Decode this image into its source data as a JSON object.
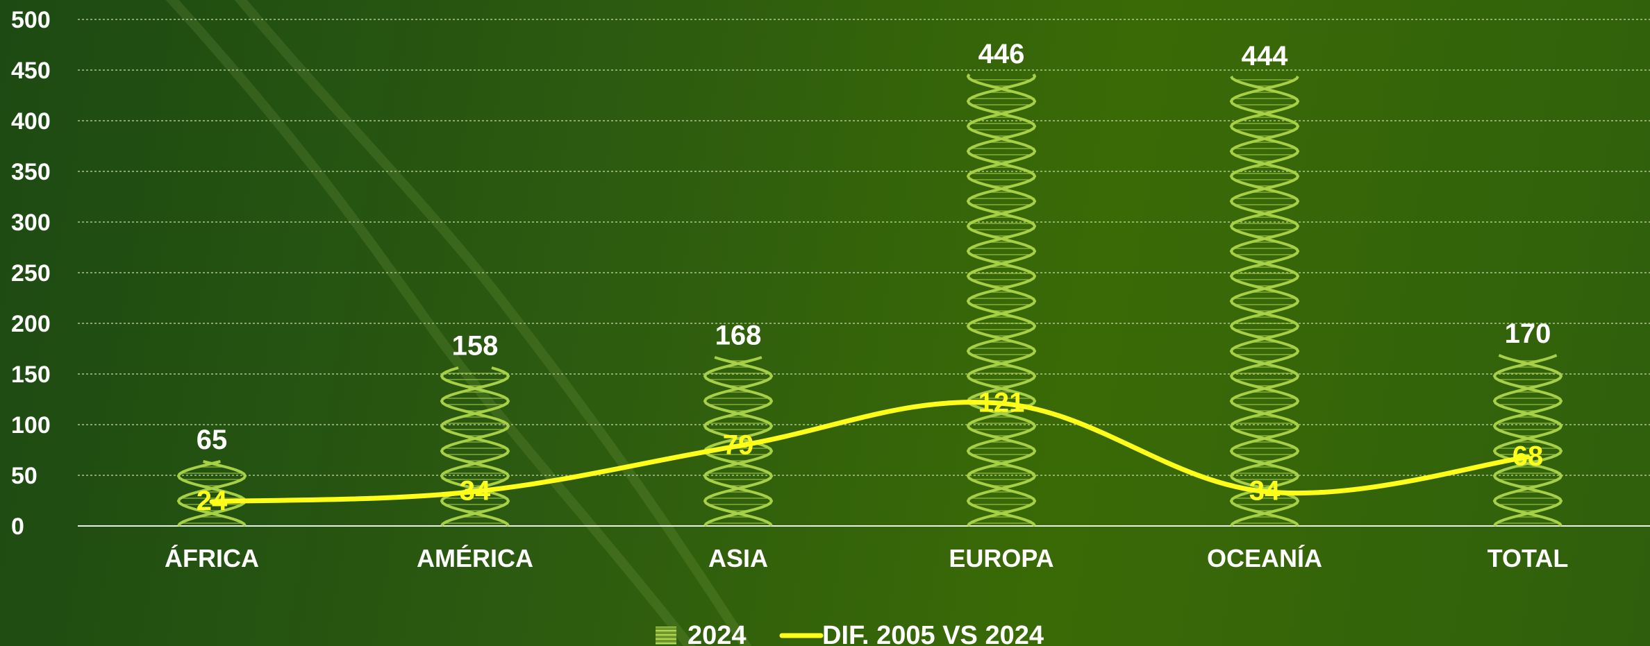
{
  "chart_data": {
    "type": "bar",
    "categories": [
      "ÁFRICA",
      "AMÉRICA",
      "ASIA",
      "EUROPA",
      "OCEANÍA",
      "TOTAL"
    ],
    "series": [
      {
        "name": "2024",
        "type": "bar",
        "values": [
          65,
          158,
          168,
          446,
          444,
          170
        ]
      },
      {
        "name": "DIF. 2005 VS 2024",
        "type": "line",
        "values": [
          24,
          34,
          79,
          121,
          34,
          68
        ]
      }
    ],
    "yticks": [
      "0",
      "50",
      "100",
      "150",
      "200",
      "250",
      "300",
      "350",
      "400",
      "450",
      "500"
    ],
    "ylim": [
      0,
      500
    ],
    "grid": true,
    "legend": "bottom-center",
    "colors": {
      "bar": "#a8d046",
      "line": "#ffff1a",
      "axis_text": "#ffffff",
      "grid": "#cfe0b0"
    }
  }
}
